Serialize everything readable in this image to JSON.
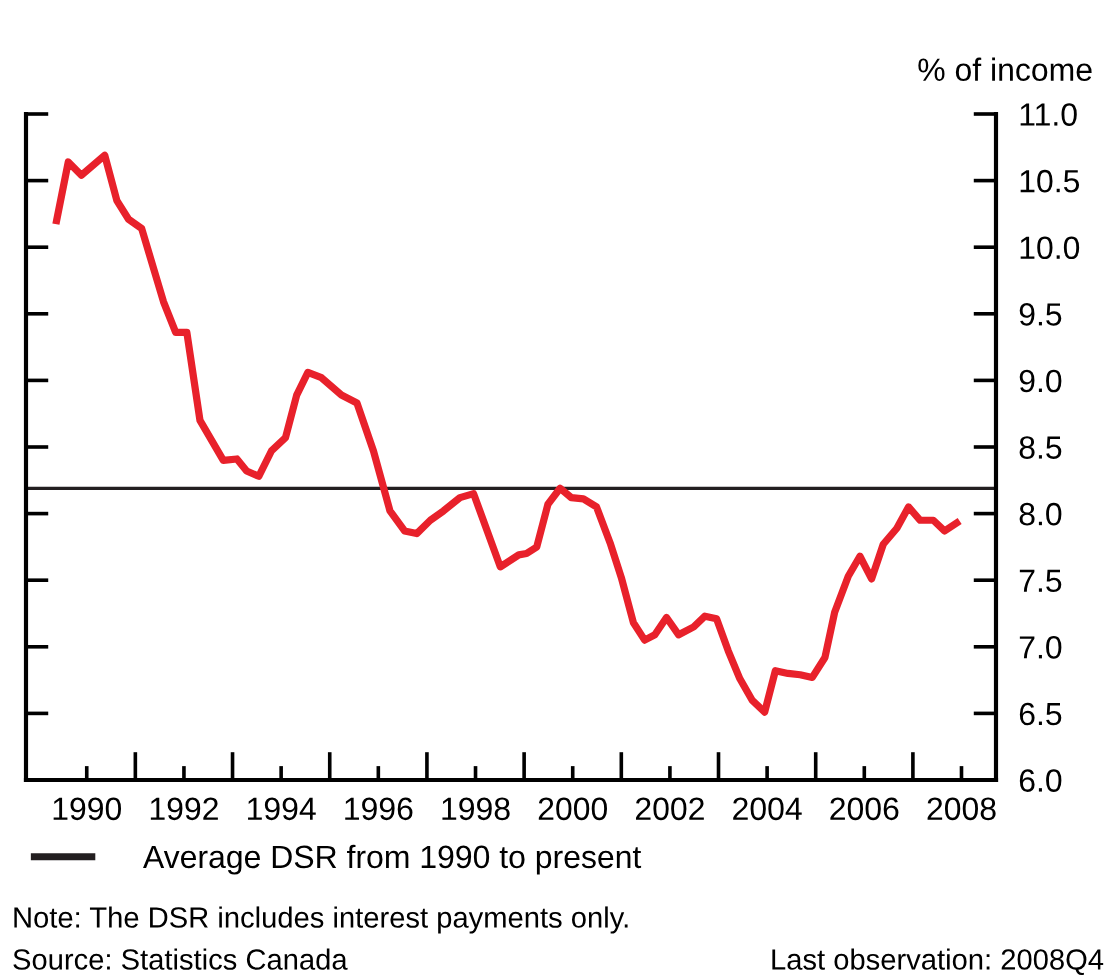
{
  "chart_data": {
    "type": "line",
    "ylabel": "% of income",
    "x": [
      1989.38,
      1989.62,
      1989.89,
      1990.37,
      1990.62,
      1990.86,
      1991.13,
      1991.58,
      1991.83,
      1992.06,
      1992.33,
      1992.81,
      1993.09,
      1993.29,
      1993.54,
      1993.8,
      1994.09,
      1994.32,
      1994.55,
      1994.83,
      1995.24,
      1995.56,
      1995.9,
      1996.24,
      1996.54,
      1996.79,
      1997.07,
      1997.34,
      1997.68,
      1997.96,
      1998.51,
      1998.89,
      1999.05,
      1999.26,
      1999.49,
      1999.74,
      1999.97,
      2000.22,
      2000.49,
      2000.77,
      2001.0,
      2001.25,
      2001.48,
      2001.69,
      2001.93,
      2002.18,
      2002.49,
      2002.72,
      2002.96,
      2003.2,
      2003.44,
      2003.69,
      2003.95,
      2004.17,
      2004.43,
      2004.68,
      2004.93,
      2005.19,
      2005.39,
      2005.67,
      2005.91,
      2006.15,
      2006.39,
      2006.67,
      2006.91,
      2007.15,
      2007.42,
      2007.65,
      2007.9
    ],
    "series": [
      {
        "color": "#e8212b",
        "values": [
          10.2,
          10.64,
          10.54,
          10.69,
          10.35,
          10.21,
          10.14,
          9.59,
          9.36,
          9.36,
          8.7,
          8.4,
          8.41,
          8.32,
          8.28,
          8.47,
          8.57,
          8.89,
          9.06,
          9.02,
          8.89,
          8.83,
          8.47,
          8.02,
          7.87,
          7.85,
          7.95,
          8.02,
          8.12,
          8.15,
          7.6,
          7.69,
          7.7,
          7.75,
          8.07,
          8.19,
          8.12,
          8.11,
          8.05,
          7.78,
          7.52,
          7.18,
          7.05,
          7.09,
          7.22,
          7.09,
          7.15,
          7.23,
          7.21,
          6.97,
          6.76,
          6.6,
          6.51,
          6.82,
          6.8,
          6.79,
          6.77,
          6.92,
          7.26,
          7.53,
          7.68,
          7.51,
          7.77,
          7.89,
          8.05,
          7.95,
          7.95,
          7.87,
          7.93
        ]
      }
    ],
    "xlim": [
      1988.75,
      2008.71
    ],
    "xticks": [
      1990,
      {
        "value": 1991,
        "label": null
      },
      1992,
      {
        "value": 1993,
        "label": null
      },
      1994,
      {
        "value": 1995,
        "label": null
      },
      1996,
      {
        "value": 1997,
        "label": null
      },
      1998,
      {
        "value": 1999,
        "label": null
      },
      2000,
      {
        "value": 2001,
        "label": null
      },
      2002,
      {
        "value": 2003,
        "label": null
      },
      2004,
      {
        "value": 2005,
        "label": null
      },
      2006,
      {
        "value": 2007,
        "label": null
      },
      2008
    ],
    "ylim": [
      6.0,
      11.0
    ],
    "yticks": [
      {
        "value": 6.0,
        "label": "6.0"
      },
      {
        "value": 6.5,
        "label": "6.5"
      },
      {
        "value": 7.0,
        "label": "7.0"
      },
      {
        "value": 7.5,
        "label": "7.5"
      },
      {
        "value": 8.0,
        "label": "8.0"
      },
      {
        "value": 8.5,
        "label": "8.5"
      },
      {
        "value": 9.0,
        "label": "9.0"
      },
      {
        "value": 9.5,
        "label": "9.5"
      },
      {
        "value": 10.0,
        "label": "10.0"
      },
      {
        "value": 10.5,
        "label": "10.5"
      },
      {
        "value": 11.0,
        "label": "11.0"
      }
    ],
    "ref_lines": [
      {
        "axis": "y",
        "value": 8.19,
        "label": "Average DSR from 1990 to present",
        "color": "#231f20"
      }
    ],
    "legend": "bottom",
    "grid": false,
    "annotations": [
      "Note: The DSR includes interest payments only.",
      "Source: Statistics Canada",
      "Last observation: 2008Q4"
    ]
  }
}
